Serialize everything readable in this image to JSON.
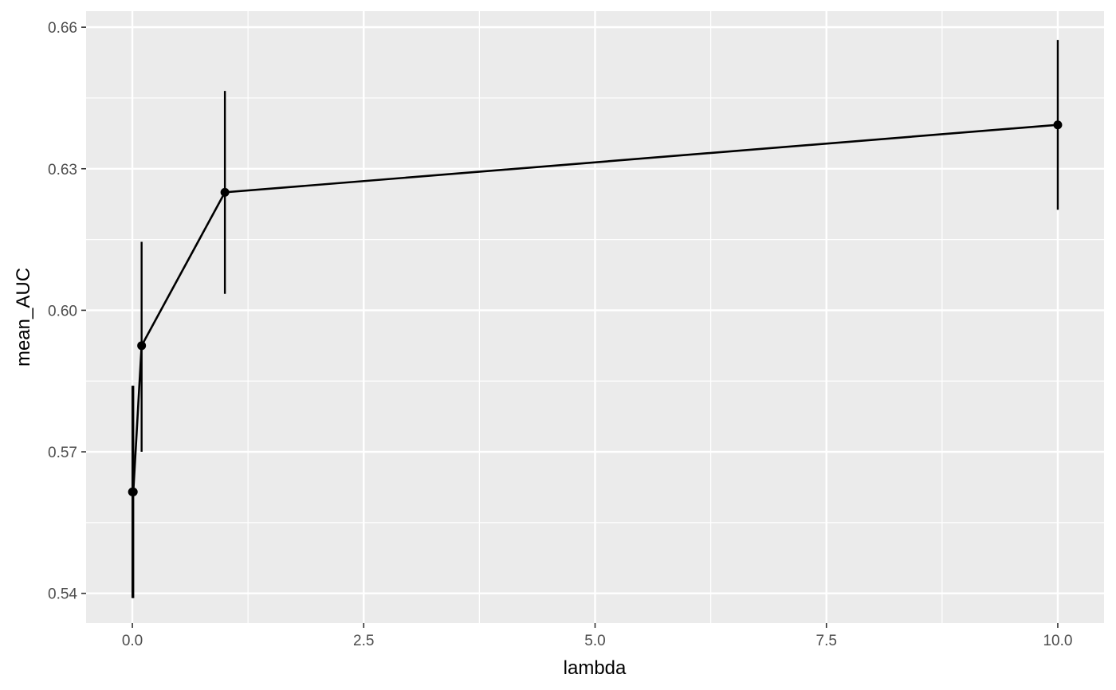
{
  "chart_data": {
    "type": "line",
    "title": "",
    "xlabel": "lambda",
    "ylabel": "mean_AUC",
    "xlim": [
      -0.5,
      10.5
    ],
    "ylim": [
      0.5337,
      0.6634
    ],
    "x_ticks": [
      {
        "value": 0.0,
        "label": "0.0"
      },
      {
        "value": 2.5,
        "label": "2.5"
      },
      {
        "value": 5.0,
        "label": "5.0"
      },
      {
        "value": 7.5,
        "label": "7.5"
      },
      {
        "value": 10.0,
        "label": "10.0"
      }
    ],
    "y_ticks": [
      {
        "value": 0.54,
        "label": "0.54"
      },
      {
        "value": 0.57,
        "label": "0.57"
      },
      {
        "value": 0.6,
        "label": "0.60"
      },
      {
        "value": 0.63,
        "label": "0.63"
      },
      {
        "value": 0.66,
        "label": "0.66"
      }
    ],
    "grid": true,
    "background": "#ebebeb",
    "grid_color": "#ffffff",
    "line_color": "#000000",
    "points": [
      {
        "x": 0.001,
        "y": 0.5615,
        "ymin": 0.539,
        "ymax": 0.584
      },
      {
        "x": 0.01,
        "y": 0.5615,
        "ymin": 0.539,
        "ymax": 0.584
      },
      {
        "x": 0.1,
        "y": 0.5925,
        "ymin": 0.57,
        "ymax": 0.6145
      },
      {
        "x": 1.0,
        "y": 0.625,
        "ymin": 0.6035,
        "ymax": 0.6465
      },
      {
        "x": 10.0,
        "y": 0.6393,
        "ymin": 0.6213,
        "ymax": 0.6573
      }
    ]
  }
}
